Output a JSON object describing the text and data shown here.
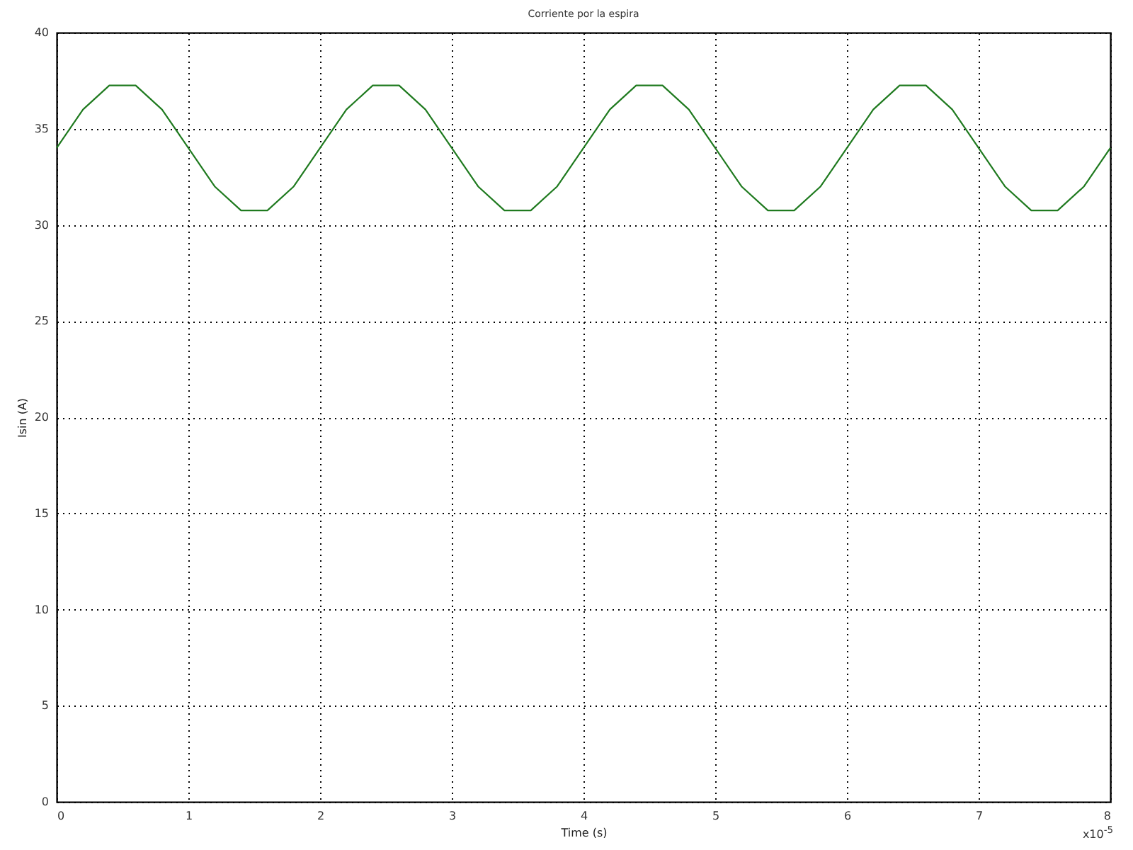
{
  "chart_data": {
    "type": "line",
    "title": "Corriente por la espira",
    "xlabel": "Time (s)",
    "ylabel": "Isin (A)",
    "annotations": [
      "x10$^{-5}$"
    ],
    "x": [
      0,
      0.2,
      0.4,
      0.6,
      0.8,
      1,
      1.2,
      1.4,
      1.6,
      1.8,
      2,
      2.2,
      2.4,
      2.6,
      2.8,
      3,
      3.2,
      3.4,
      3.6,
      3.8,
      4,
      4.2,
      4.4,
      4.6,
      4.8,
      5,
      5.2,
      5.4,
      5.6,
      5.8,
      6,
      6.2,
      6.4,
      6.6,
      6.8,
      7,
      7.2,
      7.4,
      7.6,
      7.8,
      8
    ],
    "series": [
      {
        "color": "#1f7a1f",
        "values": [
          34,
          36,
          37.25,
          37.25,
          36,
          34,
          32,
          30.75,
          30.75,
          32,
          34,
          36,
          37.25,
          37.25,
          36,
          34,
          32,
          30.75,
          30.75,
          32,
          34,
          36,
          37.25,
          37.25,
          36,
          34,
          32,
          30.75,
          30.75,
          32,
          34,
          36,
          37.25,
          37.25,
          36,
          34,
          32,
          30.75,
          30.75,
          32,
          34
        ]
      }
    ],
    "xlim": [
      0,
      8
    ],
    "ylim": [
      0,
      40
    ],
    "xticks": [
      0,
      1,
      2,
      3,
      4,
      5,
      6,
      7,
      8
    ],
    "yticks": [
      0,
      5,
      10,
      15,
      20,
      25,
      30,
      35,
      40
    ],
    "grid": true,
    "legend": false,
    "marker": "none",
    "line_style": "solid"
  }
}
